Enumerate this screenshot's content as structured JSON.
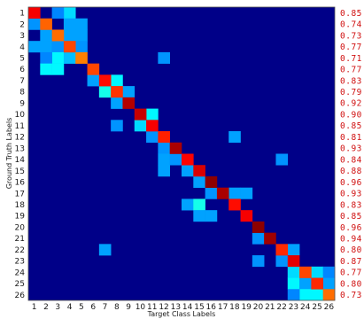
{
  "chart_data": {
    "type": "heatmap",
    "title": "",
    "xlabel": "Target Class Labels",
    "ylabel": "Ground Truth Labels",
    "x_tick_labels": [
      "1",
      "2",
      "3",
      "4",
      "5",
      "6",
      "7",
      "8",
      "9",
      "10",
      "11",
      "12",
      "13",
      "14",
      "15",
      "16",
      "17",
      "18",
      "19",
      "20",
      "21",
      "22",
      "23",
      "24",
      "25",
      "26"
    ],
    "y_tick_labels": [
      "1",
      "2",
      "3",
      "4",
      "5",
      "6",
      "7",
      "8",
      "9",
      "10",
      "11",
      "12",
      "13",
      "14",
      "15",
      "16",
      "17",
      "18",
      "19",
      "20",
      "21",
      "22",
      "23",
      "24",
      "25",
      "26"
    ],
    "row_accuracy_labels": [
      "0.85",
      "0.74",
      "0.73",
      "0.77",
      "0.71",
      "0.77",
      "0.83",
      "0.79",
      "0.92",
      "0.90",
      "0.85",
      "0.81",
      "0.93",
      "0.84",
      "0.88",
      "0.96",
      "0.93",
      "0.83",
      "0.85",
      "0.96",
      "0.94",
      "0.80",
      "0.87",
      "0.77",
      "0.80",
      "0.73"
    ],
    "diagonal": [
      0.85,
      0.74,
      0.73,
      0.77,
      0.71,
      0.77,
      0.83,
      0.79,
      0.92,
      0.9,
      0.85,
      0.81,
      0.93,
      0.84,
      0.88,
      0.96,
      0.93,
      0.83,
      0.85,
      0.96,
      0.94,
      0.8,
      0.87,
      0.77,
      0.8,
      0.73
    ],
    "off_diagonal": [
      {
        "row": 1,
        "col": 4,
        "value": 0.1
      },
      {
        "row": 1,
        "col": 3,
        "value": 0.04
      },
      {
        "row": 2,
        "col": 1,
        "value": 0.05
      },
      {
        "row": 2,
        "col": 4,
        "value": 0.06
      },
      {
        "row": 2,
        "col": 5,
        "value": 0.06
      },
      {
        "row": 3,
        "col": 2,
        "value": 0.06
      },
      {
        "row": 3,
        "col": 4,
        "value": 0.06
      },
      {
        "row": 3,
        "col": 5,
        "value": 0.06
      },
      {
        "row": 4,
        "col": 1,
        "value": 0.06
      },
      {
        "row": 4,
        "col": 2,
        "value": 0.06
      },
      {
        "row": 4,
        "col": 3,
        "value": 0.05
      },
      {
        "row": 4,
        "col": 5,
        "value": 0.05
      },
      {
        "row": 5,
        "col": 3,
        "value": 0.12
      },
      {
        "row": 5,
        "col": 4,
        "value": 0.08
      },
      {
        "row": 5,
        "col": 2,
        "value": 0.04
      },
      {
        "row": 5,
        "col": 12,
        "value": 0.05
      },
      {
        "row": 6,
        "col": 2,
        "value": 0.12
      },
      {
        "row": 6,
        "col": 3,
        "value": 0.12
      },
      {
        "row": 7,
        "col": 6,
        "value": 0.06
      },
      {
        "row": 7,
        "col": 8,
        "value": 0.12
      },
      {
        "row": 8,
        "col": 7,
        "value": 0.14
      },
      {
        "row": 8,
        "col": 9,
        "value": 0.06
      },
      {
        "row": 9,
        "col": 8,
        "value": 0.06
      },
      {
        "row": 10,
        "col": 11,
        "value": 0.12
      },
      {
        "row": 11,
        "col": 8,
        "value": 0.05
      },
      {
        "row": 11,
        "col": 10,
        "value": 0.1
      },
      {
        "row": 12,
        "col": 11,
        "value": 0.05
      },
      {
        "row": 12,
        "col": 18,
        "value": 0.06
      },
      {
        "row": 13,
        "col": 12,
        "value": 0.05
      },
      {
        "row": 14,
        "col": 12,
        "value": 0.06
      },
      {
        "row": 14,
        "col": 13,
        "value": 0.05
      },
      {
        "row": 14,
        "col": 22,
        "value": 0.05
      },
      {
        "row": 15,
        "col": 12,
        "value": 0.06
      },
      {
        "row": 15,
        "col": 14,
        "value": 0.06
      },
      {
        "row": 16,
        "col": 15,
        "value": 0.06
      },
      {
        "row": 17,
        "col": 16,
        "value": 0.05
      },
      {
        "row": 17,
        "col": 18,
        "value": 0.06
      },
      {
        "row": 17,
        "col": 19,
        "value": 0.06
      },
      {
        "row": 18,
        "col": 14,
        "value": 0.06
      },
      {
        "row": 18,
        "col": 15,
        "value": 0.14
      },
      {
        "row": 19,
        "col": 15,
        "value": 0.06
      },
      {
        "row": 19,
        "col": 16,
        "value": 0.06
      },
      {
        "row": 21,
        "col": 20,
        "value": 0.05
      },
      {
        "row": 22,
        "col": 7,
        "value": 0.06
      },
      {
        "row": 22,
        "col": 23,
        "value": 0.06
      },
      {
        "row": 23,
        "col": 20,
        "value": 0.05
      },
      {
        "row": 23,
        "col": 22,
        "value": 0.05
      },
      {
        "row": 24,
        "col": 23,
        "value": 0.1
      },
      {
        "row": 24,
        "col": 25,
        "value": 0.1
      },
      {
        "row": 24,
        "col": 26,
        "value": 0.04
      },
      {
        "row": 25,
        "col": 23,
        "value": 0.12
      },
      {
        "row": 25,
        "col": 24,
        "value": 0.06
      },
      {
        "row": 25,
        "col": 26,
        "value": 0.06
      },
      {
        "row": 26,
        "col": 24,
        "value": 0.12
      },
      {
        "row": 26,
        "col": 25,
        "value": 0.12
      },
      {
        "row": 26,
        "col": 23,
        "value": 0.04
      }
    ],
    "colormap": "jet",
    "grid": false,
    "legend": "none"
  }
}
